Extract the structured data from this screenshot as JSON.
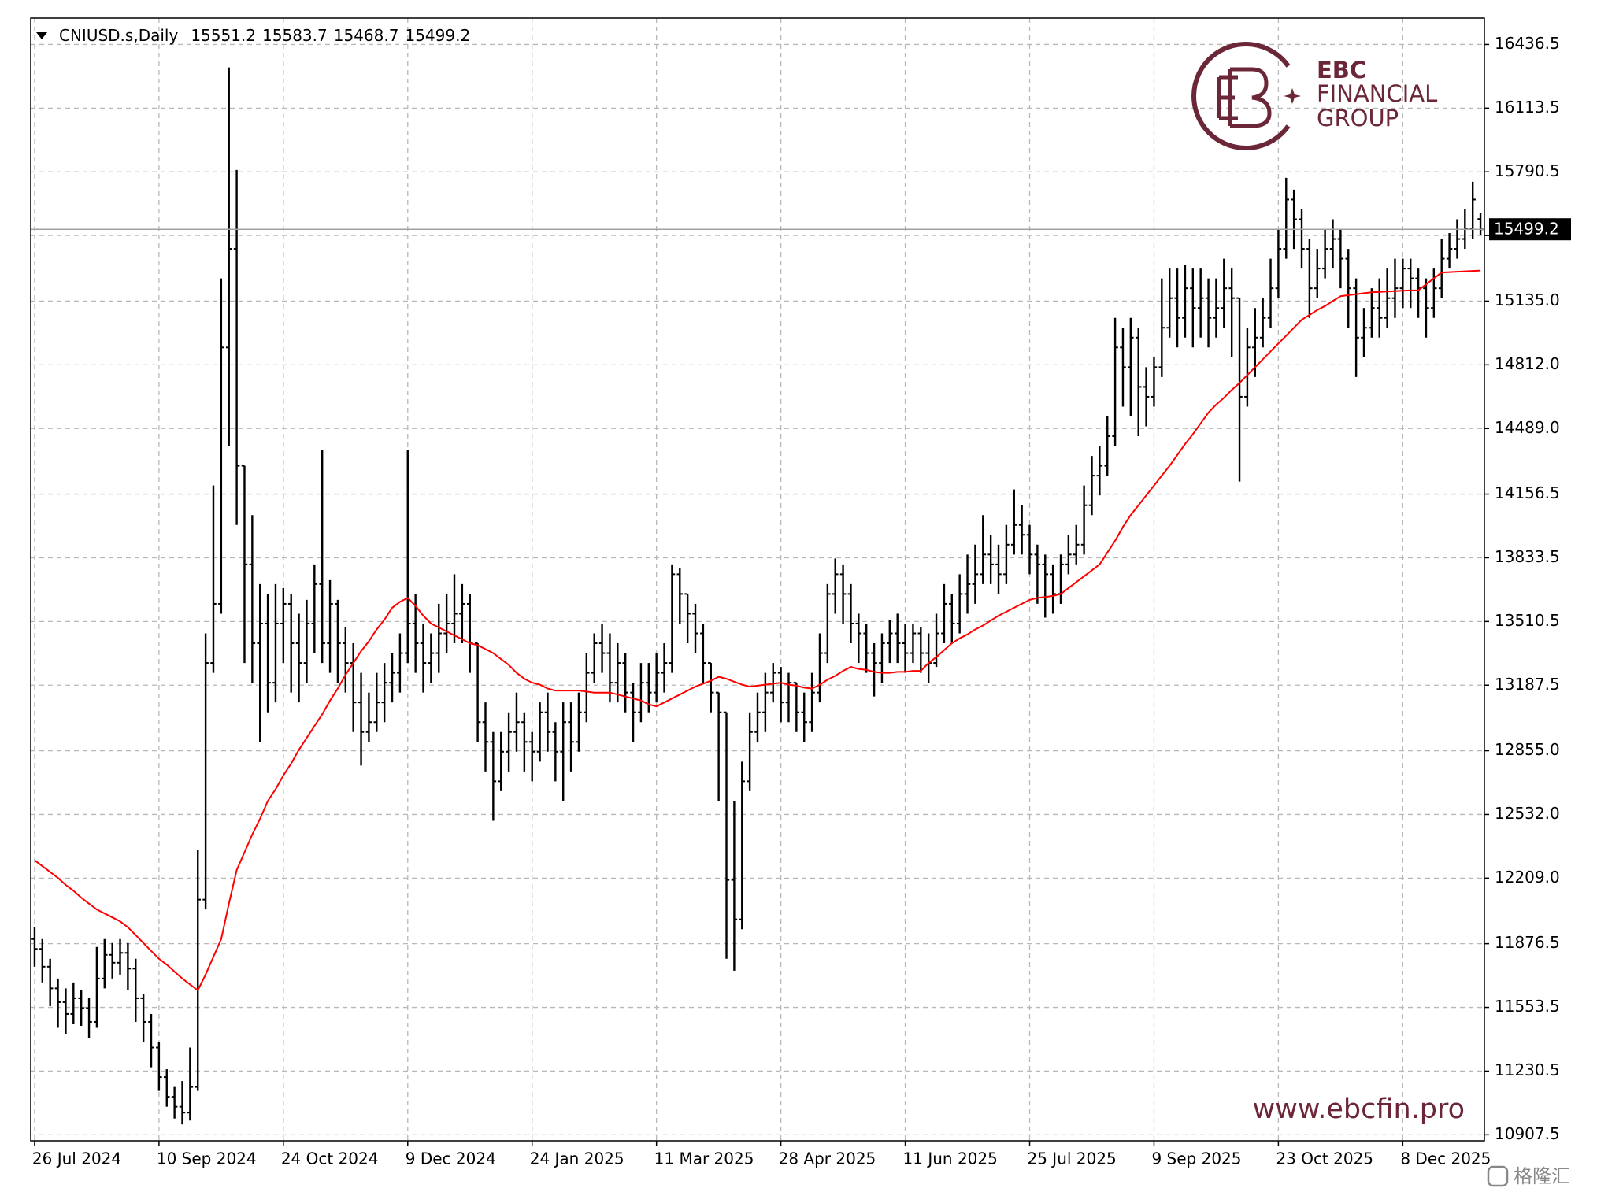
{
  "chart_data": {
    "type": "ohlc",
    "title": "CNIUSD.s,Daily",
    "header_values": [
      15551.2,
      15583.7,
      15468.7,
      15499.2
    ],
    "price_line": 15499.2,
    "color": "#000000",
    "grid": true,
    "ylim": [
      10877,
      16570
    ],
    "yticks": [
      10907.5,
      11230.5,
      11553.5,
      11876.5,
      {
        "value": 12209,
        "label": "12209.0"
      },
      {
        "value": 12532,
        "label": "12532.0"
      },
      {
        "value": 12855,
        "label": "12855.0"
      },
      13187.5,
      13510.5,
      13833.5,
      14156.5,
      {
        "value": 14489,
        "label": "14489.0"
      },
      {
        "value": 14812,
        "label": "14812.0"
      },
      {
        "value": 15135,
        "label": "15135.0"
      },
      15467.5,
      15790.5,
      16113.5,
      16436.5
    ],
    "categories": [
      "26 Jul 2024",
      null,
      null,
      null,
      null,
      null,
      null,
      null,
      null,
      null,
      null,
      null,
      null,
      null,
      null,
      null,
      "10 Sep 2024",
      null,
      null,
      null,
      null,
      null,
      null,
      null,
      null,
      null,
      null,
      null,
      null,
      null,
      null,
      null,
      "24 Oct 2024",
      null,
      null,
      null,
      null,
      null,
      null,
      null,
      null,
      null,
      null,
      null,
      null,
      null,
      null,
      null,
      "9 Dec 2024",
      null,
      null,
      null,
      null,
      null,
      null,
      null,
      null,
      null,
      null,
      null,
      null,
      null,
      null,
      null,
      "24 Jan 2025",
      null,
      null,
      null,
      null,
      null,
      null,
      null,
      null,
      null,
      null,
      null,
      null,
      null,
      null,
      null,
      "11 Mar 2025",
      null,
      null,
      null,
      null,
      null,
      null,
      null,
      null,
      null,
      null,
      null,
      null,
      null,
      null,
      null,
      "28 Apr 2025",
      null,
      null,
      null,
      null,
      null,
      null,
      null,
      null,
      null,
      null,
      null,
      null,
      null,
      null,
      null,
      "11 Jun 2025",
      null,
      null,
      null,
      null,
      null,
      null,
      null,
      null,
      null,
      null,
      null,
      null,
      null,
      null,
      null,
      "25 Jul 2025",
      null,
      null,
      null,
      null,
      null,
      null,
      null,
      null,
      null,
      null,
      null,
      null,
      null,
      null,
      null,
      "9 Sep 2025",
      null,
      null,
      null,
      null,
      null,
      null,
      null,
      null,
      null,
      null,
      null,
      null,
      null,
      null,
      null,
      "23 Oct 2025",
      null,
      null,
      null,
      null,
      null,
      null,
      null,
      null,
      null,
      null,
      null,
      null,
      null,
      null,
      null,
      "8 Dec 2025",
      null,
      null,
      null,
      null,
      null,
      null,
      null,
      null,
      null,
      null
    ],
    "open": [
      11900,
      11850,
      11760,
      11650,
      11580,
      11520,
      11600,
      11550,
      11480,
      11700,
      11820,
      11780,
      11830,
      11750,
      11600,
      11480,
      11350,
      11200,
      11100,
      11050,
      11020,
      11150,
      12100,
      13300,
      13600,
      14900,
      15400,
      14300,
      13800,
      13400,
      13500,
      13200,
      13500,
      13600,
      13400,
      13300,
      13500,
      13700,
      13400,
      13600,
      13400,
      13300,
      13100,
      12950,
      13000,
      13100,
      13200,
      13250,
      13350,
      13500,
      13400,
      13300,
      13350,
      13450,
      13500,
      13550,
      13600,
      13400,
      13000,
      12900,
      12700,
      12850,
      12950,
      13000,
      12900,
      12850,
      13050,
      12950,
      12850,
      13000,
      12900,
      13050,
      13250,
      13400,
      13350,
      13200,
      13300,
      13150,
      13050,
      13200,
      13150,
      13250,
      13300,
      13750,
      13650,
      13550,
      13450,
      13300,
      13150,
      13050,
      12200,
      12000,
      12700,
      12950,
      13050,
      13150,
      13250,
      13100,
      13200,
      13050,
      13000,
      13150,
      13350,
      13650,
      13750,
      13650,
      13500,
      13450,
      13350,
      13300,
      13400,
      13450,
      13400,
      13350,
      13450,
      13350,
      13300,
      13450,
      13600,
      13500,
      13650,
      13700,
      13750,
      13850,
      13800,
      13750,
      13900,
      14000,
      13950,
      13850,
      13800,
      13750,
      13650,
      13800,
      13850,
      13900,
      14100,
      14250,
      14300,
      14450,
      14900,
      14800,
      14950,
      14700,
      14650,
      14800,
      15000,
      15150,
      15050,
      15200,
      15100,
      15150,
      15050,
      15100,
      15200,
      15150,
      14650,
      14900,
      14950,
      15050,
      15200,
      15400,
      15650,
      15550,
      15400,
      15200,
      15300,
      15400,
      15450,
      15350,
      15200,
      14950,
      15000,
      15100,
      15050,
      15150,
      15200,
      15300,
      15250,
      15200,
      15100,
      15200,
      15350,
      15400,
      15450,
      15500,
      15551.2
    ],
    "high": [
      11960,
      11900,
      11800,
      11700,
      11650,
      11680,
      11640,
      11600,
      11860,
      11900,
      11880,
      11900,
      11880,
      11800,
      11620,
      11520,
      11380,
      11240,
      11150,
      11180,
      11350,
      12350,
      13450,
      14200,
      15250,
      16320,
      15800,
      14300,
      14050,
      13700,
      13650,
      13700,
      13680,
      13650,
      13550,
      13620,
      13800,
      14380,
      13720,
      13620,
      13480,
      13400,
      13250,
      13150,
      13250,
      13300,
      13350,
      13450,
      14380,
      13650,
      13500,
      13450,
      13600,
      13650,
      13750,
      13700,
      13650,
      13400,
      13100,
      12950,
      12950,
      13050,
      13150,
      13050,
      12950,
      13100,
      13150,
      13000,
      13100,
      13100,
      13150,
      13350,
      13450,
      13500,
      13450,
      13400,
      13350,
      13200,
      13300,
      13300,
      13350,
      13400,
      13800,
      13780,
      13650,
      13600,
      13500,
      13300,
      13150,
      13050,
      12600,
      12800,
      13050,
      13150,
      13250,
      13300,
      13280,
      13250,
      13200,
      13150,
      13250,
      13450,
      13700,
      13830,
      13800,
      13700,
      13550,
      13500,
      13400,
      13450,
      13520,
      13550,
      13500,
      13500,
      13480,
      13450,
      13550,
      13700,
      13650,
      13750,
      13850,
      13900,
      14050,
      13950,
      13900,
      14000,
      14180,
      14100,
      14000,
      13900,
      13850,
      13800,
      13850,
      13950,
      14000,
      14200,
      14350,
      14400,
      14550,
      15050,
      15000,
      15050,
      15000,
      14800,
      14850,
      15250,
      15300,
      15300,
      15320,
      15300,
      15300,
      15250,
      15250,
      15350,
      15300,
      15150,
      15000,
      15100,
      15150,
      15350,
      15500,
      15760,
      15700,
      15600,
      15450,
      15400,
      15500,
      15550,
      15500,
      15400,
      15250,
      15100,
      15200,
      15250,
      15300,
      15350,
      15350,
      15350,
      15300,
      15250,
      15300,
      15450,
      15480,
      15550,
      15600,
      15740,
      15583.7
    ],
    "low": [
      11760,
      11680,
      11560,
      11450,
      11420,
      11470,
      11460,
      11400,
      11450,
      11650,
      11700,
      11720,
      11640,
      11480,
      11380,
      11250,
      11130,
      11050,
      10990,
      10960,
      10980,
      11130,
      12050,
      13250,
      13550,
      14400,
      14000,
      13300,
      13200,
      12900,
      13050,
      13100,
      13300,
      13150,
      13100,
      13200,
      13350,
      13300,
      13250,
      13200,
      13150,
      12950,
      12780,
      12900,
      12950,
      13000,
      13100,
      13150,
      13300,
      13250,
      13150,
      13200,
      13250,
      13350,
      13400,
      13400,
      13250,
      12900,
      12750,
      12500,
      12650,
      12750,
      12850,
      12750,
      12700,
      12800,
      12850,
      12700,
      12600,
      12750,
      12850,
      13000,
      13200,
      13250,
      13100,
      13100,
      13050,
      12900,
      13000,
      13050,
      13100,
      13150,
      13250,
      13500,
      13400,
      13350,
      13200,
      13050,
      12600,
      11800,
      11740,
      11950,
      12650,
      12900,
      12950,
      13100,
      13000,
      13000,
      12950,
      12900,
      12950,
      13100,
      13300,
      13550,
      13500,
      13400,
      13300,
      13250,
      13130,
      13200,
      13300,
      13300,
      13250,
      13300,
      13250,
      13200,
      13280,
      13400,
      13400,
      13450,
      13550,
      13600,
      13700,
      13700,
      13650,
      13700,
      13850,
      13850,
      13750,
      13600,
      13530,
      13550,
      13600,
      13750,
      13800,
      13850,
      14050,
      14150,
      14250,
      14400,
      14600,
      14550,
      14450,
      14500,
      14600,
      14750,
      14950,
      14900,
      14950,
      14900,
      14950,
      14900,
      14950,
      15000,
      14850,
      14220,
      14600,
      14750,
      14900,
      15000,
      15150,
      15350,
      15400,
      15300,
      15050,
      15150,
      15250,
      15300,
      15200,
      15000,
      14750,
      14850,
      14950,
      14950,
      15000,
      15050,
      15100,
      15100,
      15050,
      14950,
      15050,
      15150,
      15300,
      15350,
      15400,
      15450,
      15468.7
    ],
    "close": [
      11850,
      11760,
      11650,
      11580,
      11520,
      11600,
      11550,
      11480,
      11700,
      11820,
      11780,
      11830,
      11750,
      11600,
      11480,
      11350,
      11200,
      11100,
      11050,
      11020,
      11150,
      12100,
      13300,
      13600,
      14900,
      15400,
      14300,
      13800,
      13400,
      13500,
      13200,
      13500,
      13600,
      13400,
      13300,
      13500,
      13700,
      13400,
      13600,
      13400,
      13300,
      13100,
      12950,
      13000,
      13100,
      13200,
      13250,
      13350,
      13500,
      13400,
      13300,
      13350,
      13450,
      13500,
      13550,
      13600,
      13400,
      13000,
      12900,
      12700,
      12850,
      12950,
      13000,
      12900,
      12850,
      13050,
      12950,
      12850,
      13000,
      12900,
      13050,
      13250,
      13400,
      13350,
      13200,
      13300,
      13150,
      13050,
      13200,
      13150,
      13250,
      13300,
      13750,
      13650,
      13550,
      13450,
      13300,
      13150,
      13050,
      12200,
      12000,
      12700,
      12950,
      13050,
      13150,
      13250,
      13100,
      13200,
      13050,
      13000,
      13150,
      13350,
      13650,
      13750,
      13650,
      13500,
      13450,
      13350,
      13300,
      13400,
      13450,
      13400,
      13350,
      13450,
      13350,
      13300,
      13450,
      13600,
      13500,
      13650,
      13700,
      13750,
      13850,
      13800,
      13750,
      13900,
      14000,
      13950,
      13850,
      13800,
      13750,
      13650,
      13800,
      13850,
      13900,
      14100,
      14250,
      14300,
      14450,
      14900,
      14800,
      14950,
      14700,
      14650,
      14800,
      15000,
      15150,
      15050,
      15200,
      15100,
      15150,
      15050,
      15100,
      15200,
      15150,
      14650,
      14900,
      14950,
      15050,
      15200,
      15400,
      15650,
      15550,
      15400,
      15200,
      15300,
      15400,
      15450,
      15350,
      15200,
      14950,
      15000,
      15100,
      15050,
      15150,
      15200,
      15300,
      15250,
      15200,
      15100,
      15200,
      15350,
      15400,
      15450,
      15500,
      15650,
      15499.2
    ],
    "ma": {
      "color": "#ff0000",
      "values": [
        12300,
        12270,
        12240,
        12210,
        12175,
        12145,
        12110,
        12080,
        12050,
        12030,
        12010,
        11990,
        11960,
        11920,
        11880,
        11840,
        11800,
        11770,
        11735,
        11700,
        11670,
        11640,
        11720,
        11810,
        11900,
        12080,
        12250,
        12340,
        12430,
        12510,
        12600,
        12660,
        12730,
        12790,
        12860,
        12920,
        12980,
        13040,
        13110,
        13170,
        13240,
        13300,
        13360,
        13410,
        13470,
        13520,
        13580,
        13610,
        13630,
        13590,
        13540,
        13500,
        13480,
        13460,
        13440,
        13420,
        13400,
        13390,
        13370,
        13350,
        13320,
        13290,
        13250,
        13220,
        13200,
        13190,
        13170,
        13160,
        13160,
        13160,
        13160,
        13155,
        13150,
        13150,
        13150,
        13140,
        13130,
        13120,
        13110,
        13090,
        13080,
        13100,
        13120,
        13140,
        13160,
        13180,
        13195,
        13210,
        13230,
        13220,
        13205,
        13190,
        13180,
        13185,
        13190,
        13195,
        13200,
        13190,
        13185,
        13175,
        13170,
        13190,
        13215,
        13235,
        13260,
        13280,
        13270,
        13265,
        13255,
        13250,
        13250,
        13255,
        13255,
        13260,
        13260,
        13300,
        13330,
        13365,
        13400,
        13425,
        13445,
        13470,
        13490,
        13515,
        13540,
        13560,
        13580,
        13600,
        13620,
        13630,
        13635,
        13640,
        13650,
        13680,
        13710,
        13740,
        13770,
        13800,
        13860,
        13920,
        13990,
        14050,
        14100,
        14150,
        14200,
        14250,
        14300,
        14355,
        14410,
        14460,
        14515,
        14570,
        14610,
        14645,
        14685,
        14720,
        14760,
        14800,
        14840,
        14880,
        14920,
        14960,
        15000,
        15040,
        15065,
        15090,
        15110,
        15135,
        15160,
        15165,
        15170,
        15175,
        15180,
        15182,
        15184,
        15186,
        15188,
        15189,
        15190,
        15220,
        15250,
        15280,
        15282,
        15284,
        15286,
        15288,
        15290
      ]
    }
  },
  "brand": {
    "name": "EBC",
    "line2": "FINANCIAL",
    "line3": "GROUP",
    "url": "www.ebcfin.pro"
  },
  "watermark": "格隆汇"
}
